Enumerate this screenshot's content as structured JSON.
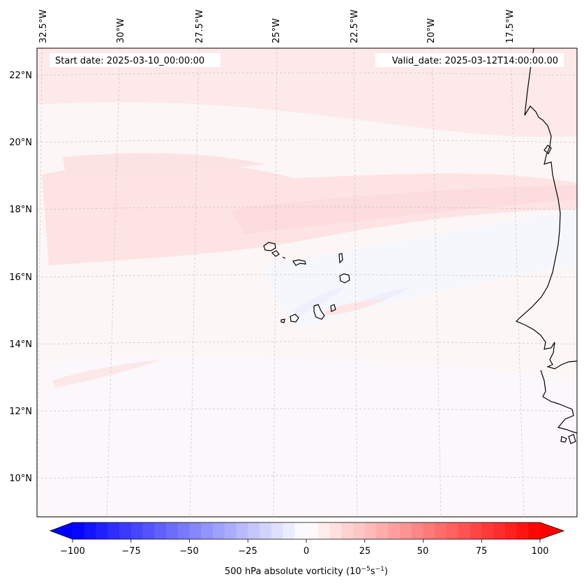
{
  "map": {
    "start_date": "Start date: 2025-03-10_00:00:00",
    "valid_date": "Valid_date: 2025-03-12T14:00:00.00",
    "lon_labels": [
      "32.5°W",
      "30°W",
      "27.5°W",
      "25°W",
      "22.5°W",
      "20°W",
      "17.5°W"
    ],
    "lat_labels": [
      "22°N",
      "20°N",
      "18°N",
      "16°N",
      "14°N",
      "12°N",
      "10°N"
    ],
    "background_color": "#fdf6f6",
    "gridline_color": "#bbbbbb"
  },
  "colorbar": {
    "label": "500 hPa absolute vorticity (10",
    "label_sup1": "−5",
    "label_mid": "s",
    "label_sup2": "−1",
    "label_end": ")",
    "ticks": [
      "−100",
      "−75",
      "−50",
      "−25",
      "0",
      "25",
      "50",
      "75",
      "100"
    ],
    "min": -100,
    "max": 100,
    "step": 5,
    "cmap": "bwr",
    "extend": "both"
  }
}
